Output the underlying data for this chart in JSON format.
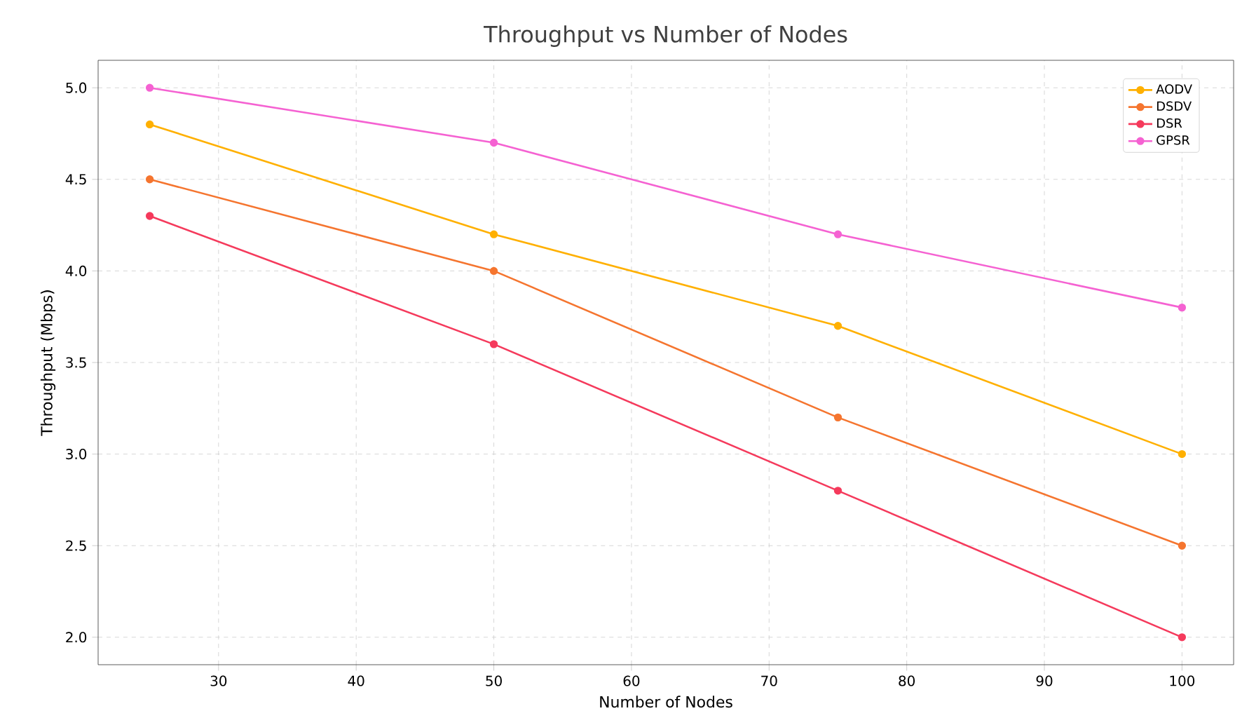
{
  "chart_data": {
    "type": "line",
    "title": "Throughput vs Number of Nodes",
    "xlabel": "Number of Nodes",
    "ylabel": "Throughput (Mbps)",
    "x": [
      25,
      50,
      75,
      100
    ],
    "series": [
      {
        "name": "AODV",
        "color": "#ffb000",
        "values": [
          4.8,
          4.2,
          3.7,
          3.0
        ]
      },
      {
        "name": "DSDV",
        "color": "#f5752f",
        "values": [
          4.5,
          4.0,
          3.2,
          2.5
        ]
      },
      {
        "name": "DSR",
        "color": "#f53a5c",
        "values": [
          4.3,
          3.6,
          2.8,
          2.0
        ]
      },
      {
        "name": "GPSR",
        "color": "#f562d2",
        "values": [
          5.0,
          4.7,
          4.2,
          3.8
        ]
      }
    ],
    "xlim": [
      21.25,
      103.75
    ],
    "ylim": [
      1.85,
      5.15
    ],
    "xticks": [
      30,
      40,
      50,
      60,
      70,
      80,
      90,
      100
    ],
    "yticks": [
      {
        "value": 2.0,
        "label": "2.0"
      },
      {
        "value": 2.5,
        "label": "2.5"
      },
      {
        "value": 3.0,
        "label": "3.0"
      },
      {
        "value": 3.5,
        "label": "3.5"
      },
      {
        "value": 4.0,
        "label": "4.0"
      },
      {
        "value": 4.5,
        "label": "4.5"
      },
      {
        "value": 5.0,
        "label": "5.0"
      }
    ],
    "grid": true,
    "legend": "top right",
    "marker": "circle",
    "line_style": "solid"
  }
}
